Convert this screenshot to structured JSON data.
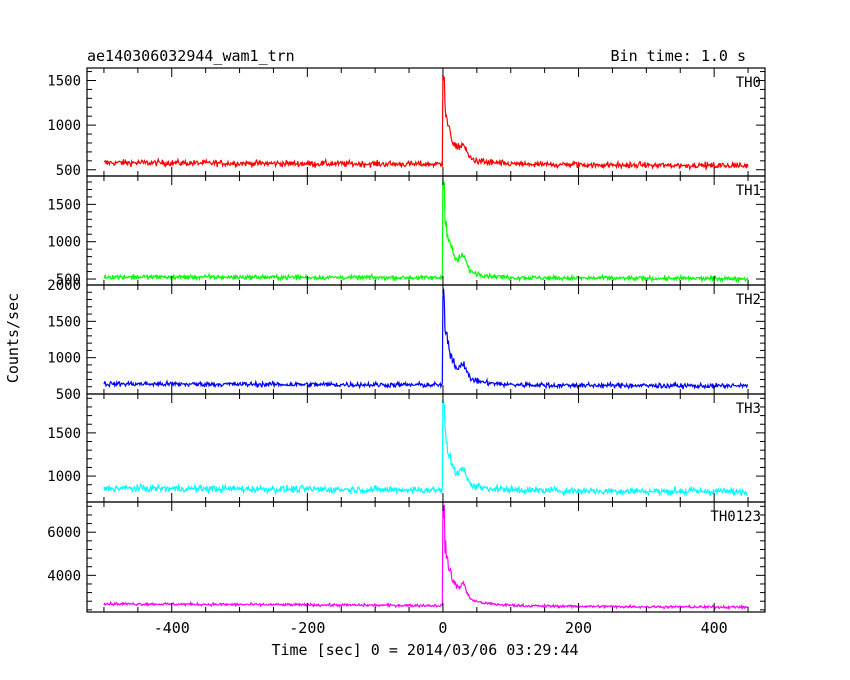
{
  "title_left": "ae140306032944_wam1_trn",
  "title_right": "Bin time: 1.0 s",
  "chart_data": {
    "type": "line",
    "xlabel": "Time [sec] 0 = 2014/03/06 03:29:44",
    "ylabel": "Counts/sec",
    "xlim": [
      -525,
      475
    ],
    "xticks": [
      -400,
      -200,
      0,
      200,
      400
    ],
    "x_range": [
      -500,
      450
    ],
    "peak_time": 0,
    "panels": [
      {
        "name": "TH0",
        "color": "#ff0000",
        "ylim": [
          430,
          1640
        ],
        "yticks": [
          500,
          1000,
          1500
        ],
        "baseline": 580,
        "peak": 1580,
        "noise": 25,
        "tail_end": 545
      },
      {
        "name": "TH1",
        "color": "#00ff00",
        "ylim": [
          420,
          1880
        ],
        "yticks": [
          500,
          1000,
          1500
        ],
        "baseline": 530,
        "peak": 1870,
        "noise": 22,
        "tail_end": 505
      },
      {
        "name": "TH2",
        "color": "#0000ff",
        "ylim": [
          500,
          2000
        ],
        "yticks": [
          500,
          1000,
          1500,
          2000
        ],
        "baseline": 640,
        "peak": 1980,
        "noise": 25,
        "tail_end": 610
      },
      {
        "name": "TH3",
        "color": "#00ffff",
        "ylim": [
          700,
          1950
        ],
        "yticks": [
          1000,
          1500
        ],
        "baseline": 860,
        "peak": 1930,
        "noise": 30,
        "tail_end": 820
      },
      {
        "name": "TH0123",
        "color": "#ff00ff",
        "ylim": [
          2300,
          7400
        ],
        "yticks": [
          4000,
          6000
        ],
        "baseline": 2680,
        "peak": 7300,
        "noise": 45,
        "tail_end": 2520
      }
    ]
  }
}
